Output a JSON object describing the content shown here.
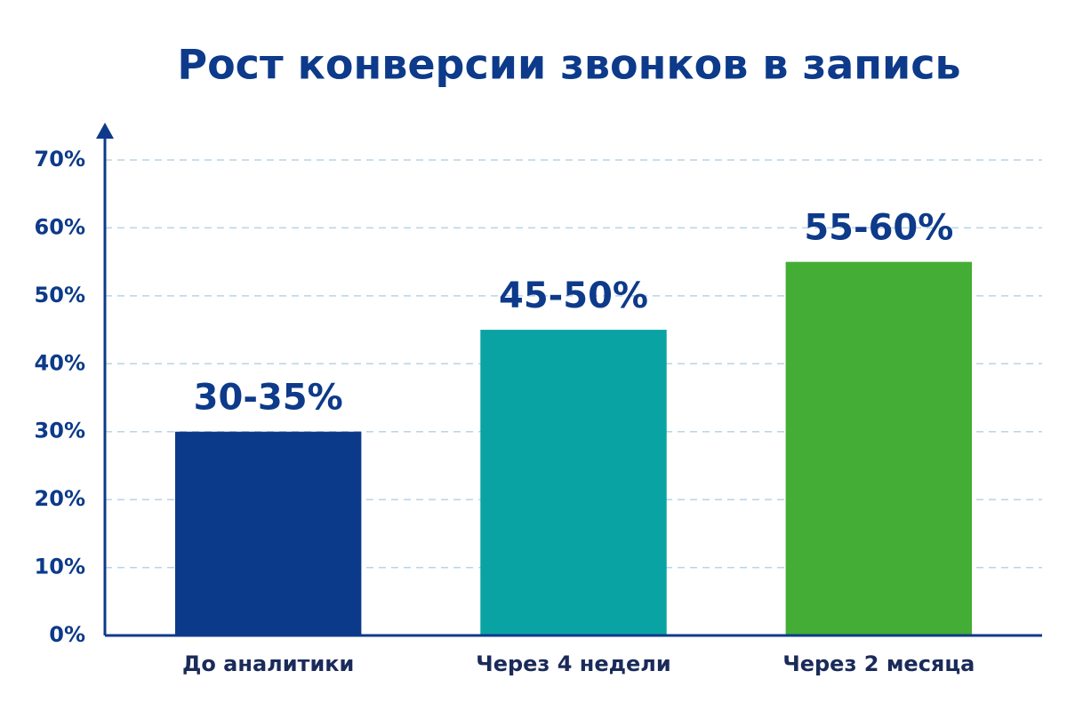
{
  "chart_data": {
    "type": "bar",
    "title": "Рост конверсии звонков в запись",
    "categories": [
      "До аналитики",
      "Через 4 недели",
      "Через 2 месяца"
    ],
    "values": [
      30,
      45,
      55
    ],
    "value_labels": [
      "30-35%",
      "45-50%",
      "55-60%"
    ],
    "colors": [
      "#0b3a8a",
      "#0aa3a3",
      "#44ad35"
    ],
    "ylim": [
      0,
      70
    ],
    "yticks": [
      {
        "value": 0,
        "label": "0%"
      },
      {
        "value": 10,
        "label": "10%"
      },
      {
        "value": 20,
        "label": "20%"
      },
      {
        "value": 30,
        "label": "30%"
      },
      {
        "value": 40,
        "label": "40%"
      },
      {
        "value": 50,
        "label": "50%"
      },
      {
        "value": 60,
        "label": "60%"
      },
      {
        "value": 70,
        "label": "70%"
      }
    ],
    "grid": true
  }
}
